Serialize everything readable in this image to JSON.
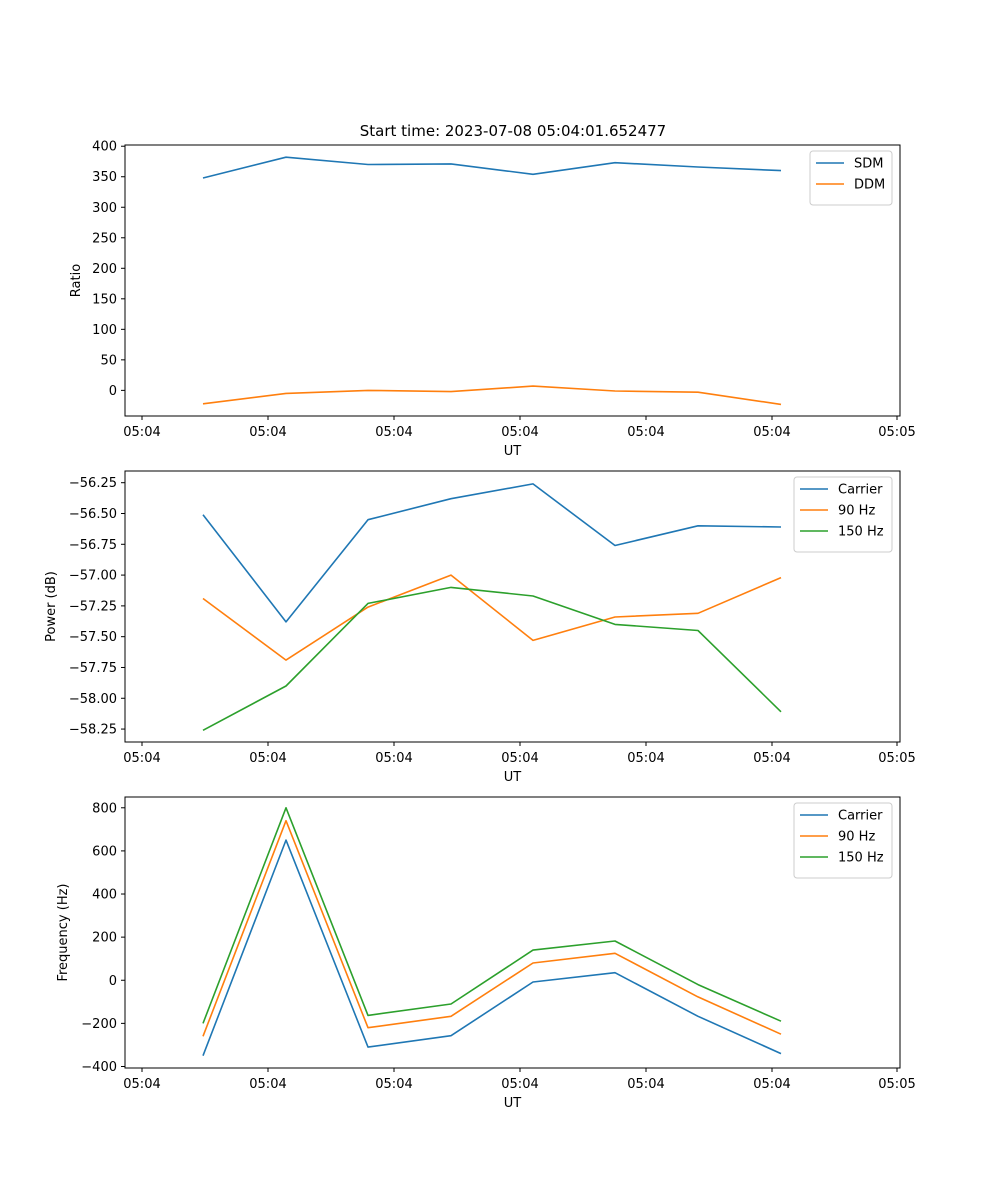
{
  "figure_title": "Start time: 2023-07-08 05:04:01.652477",
  "colors": {
    "c0": "#1f77b4",
    "c1": "#ff7f0e",
    "c2": "#2ca02c"
  },
  "chart_data": [
    {
      "type": "line",
      "title": "Start time: 2023-07-08 05:04:01.652477",
      "xlabel": "UT",
      "ylabel": "Ratio",
      "x_ticks": [
        "05:04",
        "05:04",
        "05:04",
        "05:04",
        "05:04",
        "05:04",
        "05:05"
      ],
      "y_ticks": [
        "400",
        "350",
        "300",
        "250",
        "200",
        "150",
        "100",
        "50",
        "0"
      ],
      "y_tick_values": [
        400,
        350,
        300,
        250,
        200,
        150,
        100,
        50,
        0
      ],
      "ylim": [
        -42,
        402
      ],
      "legend": [
        "SDM",
        "DDM"
      ],
      "legend_position": "top-right",
      "series": [
        {
          "name": "SDM",
          "color": "#1f77b4",
          "values": [
            348,
            382,
            370,
            371,
            354,
            373,
            366,
            360
          ]
        },
        {
          "name": "DDM",
          "color": "#ff7f0e",
          "values": [
            -22,
            -5,
            0,
            -2,
            7,
            -1,
            -3,
            -23
          ]
        }
      ]
    },
    {
      "type": "line",
      "xlabel": "UT",
      "ylabel": "Power (dB)",
      "x_ticks": [
        "05:04",
        "05:04",
        "05:04",
        "05:04",
        "05:04",
        "05:04",
        "05:05"
      ],
      "y_ticks": [
        "−56.25",
        "−56.50",
        "−56.75",
        "−57.00",
        "−57.25",
        "−57.50",
        "−57.75",
        "−58.00",
        "−58.25"
      ],
      "y_tick_values": [
        -56.25,
        -56.5,
        -56.75,
        -57.0,
        -57.25,
        -57.5,
        -57.75,
        -58.0,
        -58.25
      ],
      "ylim": [
        -58.355,
        -56.155
      ],
      "legend": [
        "Carrier",
        "90 Hz",
        "150 Hz"
      ],
      "legend_position": "top-right",
      "series": [
        {
          "name": "Carrier",
          "color": "#1f77b4",
          "values": [
            -56.51,
            -57.38,
            -56.55,
            -56.38,
            -56.26,
            -56.76,
            -56.6,
            -56.61
          ]
        },
        {
          "name": "90 Hz",
          "color": "#ff7f0e",
          "values": [
            -57.19,
            -57.69,
            -57.26,
            -57.0,
            -57.53,
            -57.34,
            -57.31,
            -57.02
          ]
        },
        {
          "name": "150 Hz",
          "color": "#2ca02c",
          "values": [
            -58.26,
            -57.9,
            -57.23,
            -57.1,
            -57.17,
            -57.4,
            -57.45,
            -58.11
          ]
        }
      ]
    },
    {
      "type": "line",
      "xlabel": "UT",
      "ylabel": "Frequency (Hz)",
      "x_ticks": [
        "05:04",
        "05:04",
        "05:04",
        "05:04",
        "05:04",
        "05:04",
        "05:05"
      ],
      "y_ticks": [
        "800",
        "600",
        "400",
        "200",
        "0",
        "−200",
        "−400"
      ],
      "y_tick_values": [
        800,
        600,
        400,
        200,
        0,
        -200,
        -400
      ],
      "ylim": [
        -407,
        850
      ],
      "legend": [
        "Carrier",
        "90 Hz",
        "150 Hz"
      ],
      "legend_position": "top-right",
      "series": [
        {
          "name": "Carrier",
          "color": "#1f77b4",
          "values": [
            -350,
            650,
            -310,
            -257,
            -8,
            35,
            -167,
            -340
          ]
        },
        {
          "name": "90 Hz",
          "color": "#ff7f0e",
          "values": [
            -260,
            740,
            -220,
            -167,
            80,
            125,
            -77,
            -250
          ]
        },
        {
          "name": "150 Hz",
          "color": "#2ca02c",
          "values": [
            -200,
            800,
            -163,
            -110,
            140,
            182,
            -20,
            -190
          ]
        }
      ]
    }
  ]
}
